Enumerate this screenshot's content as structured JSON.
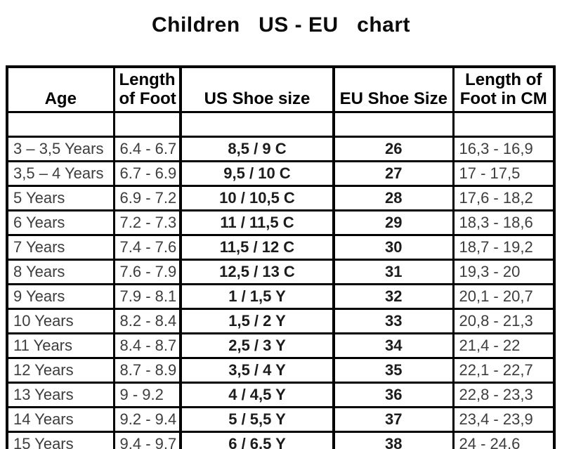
{
  "title": "Children   US - EU   chart",
  "chart_data": {
    "type": "table",
    "title": "Children   US - EU   chart",
    "columns": [
      "Age",
      "Length of Foot",
      "US Shoe size",
      "EU Shoe Size",
      "Length of Foot in CM"
    ],
    "rows": [
      [
        "3 – 3,5 Years",
        "6.4 - 6.7",
        "8,5 / 9 C",
        "26",
        "16,3 - 16,9"
      ],
      [
        "3,5 – 4 Years",
        "6.7 - 6.9",
        "9,5 / 10 C",
        "27",
        "17 - 17,5"
      ],
      [
        "5 Years",
        "6.9 - 7.2",
        "10 / 10,5 C",
        "28",
        "17,6 - 18,2"
      ],
      [
        "6 Years",
        "7.2 - 7.3",
        "11 / 11,5 C",
        "29",
        "18,3 - 18,6"
      ],
      [
        "7 Years",
        "7.4 - 7.6",
        "11,5 / 12 C",
        "30",
        "18,7 - 19,2"
      ],
      [
        "8 Years",
        "7.6 - 7.9",
        "12,5 / 13 C",
        "31",
        "19,3 - 20"
      ],
      [
        "9 Years",
        "7.9 - 8.1",
        "1 / 1,5 Y",
        "32",
        "20,1 - 20,7"
      ],
      [
        "10 Years",
        "8.2 - 8.4",
        "1,5 / 2 Y",
        "33",
        "20,8 - 21,3"
      ],
      [
        "11 Years",
        "8.4 - 8.7",
        "2,5 / 3 Y",
        "34",
        "21,4 - 22"
      ],
      [
        "12 Years",
        "8.7 - 8.9",
        "3,5 / 4 Y",
        "35",
        "22,1 - 22,7"
      ],
      [
        "13 Years",
        "9 - 9.2",
        "4 / 4,5 Y",
        "36",
        "22,8 - 23,3"
      ],
      [
        "14 Years",
        "9.2 - 9.4",
        "5 / 5,5 Y",
        "37",
        "23,4 - 23,9"
      ],
      [
        "15 Years",
        "9.4 - 9.7",
        "6 / 6,5 Y",
        "38",
        "24 - 24,6"
      ]
    ],
    "layout": {
      "grid": "on",
      "header_position": "top"
    },
    "colors": {
      "border": "#000000",
      "header_text": "#000000",
      "text_regular": "#3d3d3d",
      "text_bold": "#1c1c1c",
      "background": "#ffffff"
    }
  }
}
